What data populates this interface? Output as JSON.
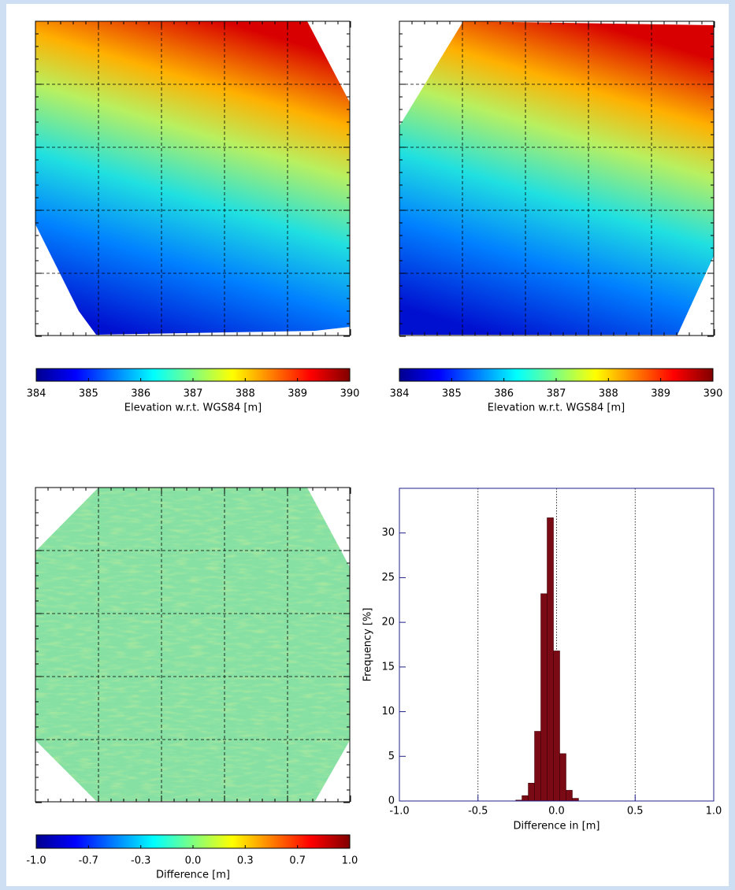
{
  "chart_data": [
    {
      "type": "colorbar",
      "xlabel": "Elevation w.r.t. WGS84 [m]",
      "xlim": [
        384,
        390
      ],
      "xticks": [
        384,
        385,
        386,
        387,
        388,
        389,
        390
      ]
    },
    {
      "type": "colorbar",
      "xlabel": "Elevation w.r.t. WGS84 [m]",
      "xlim": [
        384,
        390
      ],
      "xticks": [
        384,
        385,
        386,
        387,
        388,
        389,
        390
      ]
    },
    {
      "type": "colorbar",
      "xlabel": "Difference [m]",
      "xlim": [
        -1,
        1
      ],
      "xticks": [
        {
          "value": -1,
          "label": "-1.0"
        },
        {
          "value": -0.667,
          "label": "-0.7"
        },
        {
          "value": -0.333,
          "label": "-0.3"
        },
        {
          "value": 0,
          "label": "0.0"
        },
        {
          "value": 0.333,
          "label": "0.3"
        },
        {
          "value": 0.667,
          "label": "0.7"
        },
        {
          "value": 1,
          "label": "1.0"
        }
      ]
    },
    {
      "type": "histogram",
      "xlabel": "Difference in [m]",
      "ylabel": "Frequency [%]",
      "bins": [
        -0.26,
        -0.22,
        -0.18,
        -0.14,
        -0.1,
        -0.06,
        -0.02,
        0.02,
        0.06,
        0.1,
        0.14
      ],
      "values": [
        0.1,
        0.6,
        2.0,
        7.8,
        23.2,
        31.7,
        16.8,
        5.3,
        1.2,
        0.3
      ],
      "color": "#7a0a14",
      "axis_color": "#20208a",
      "grid": true,
      "xlim": [
        -1,
        1
      ],
      "ylim": [
        0,
        35
      ],
      "xticks": [
        {
          "value": -1,
          "label": "-1.0"
        },
        {
          "value": -0.5,
          "label": "-0.5"
        },
        {
          "value": 0,
          "label": "0.0"
        },
        {
          "value": 0.5,
          "label": "0.5"
        },
        {
          "value": 1,
          "label": "1.0"
        }
      ],
      "yticks": [
        0,
        5,
        10,
        15,
        20,
        25,
        30
      ]
    }
  ]
}
